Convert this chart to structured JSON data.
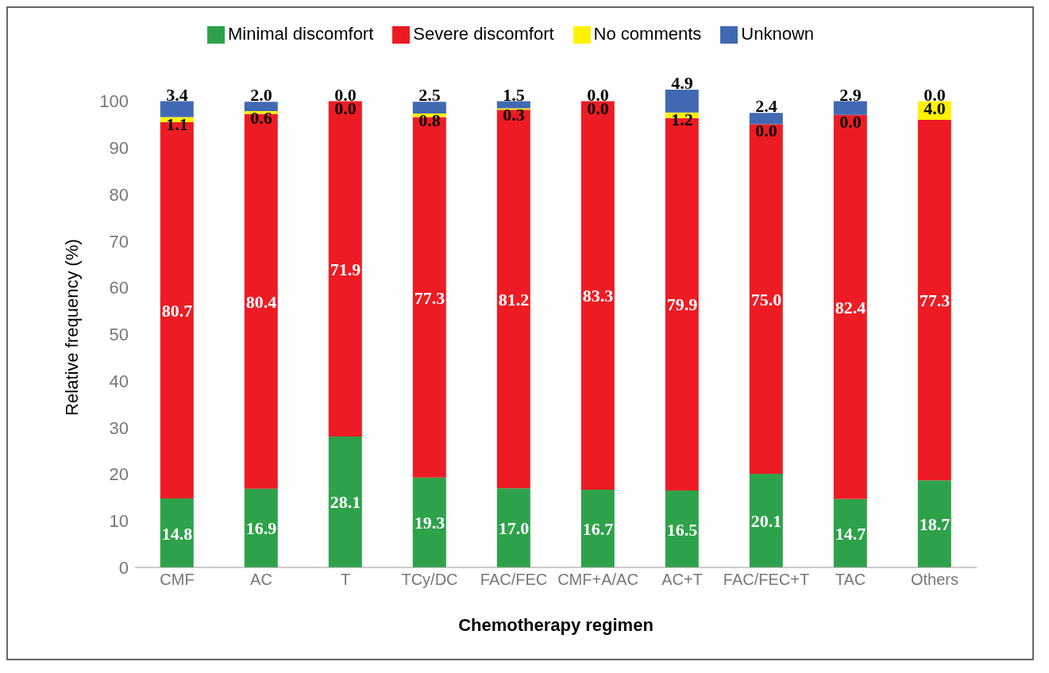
{
  "chart_data": {
    "type": "bar",
    "stacked": true,
    "xlabel": "Chemotherapy regimen",
    "ylabel": "Relative frequency (%)",
    "categories": [
      "CMF",
      "AC",
      "T",
      "TCy/DC",
      "FAC/FEC",
      "CMF+A/AC",
      "AC+T",
      "FAC/FEC+T",
      "TAC",
      "Others"
    ],
    "ylim": [
      0,
      103
    ],
    "yticks": [
      0,
      10,
      20,
      30,
      40,
      50,
      60,
      70,
      80,
      90,
      100
    ],
    "grid": false,
    "legend": "top",
    "series": [
      {
        "name": "Minimal discomfort",
        "color": "#2ea24a",
        "values": [
          14.8,
          16.9,
          28.1,
          19.3,
          17.0,
          16.7,
          16.5,
          20.1,
          14.7,
          18.7
        ],
        "value_labels": [
          "14.8",
          "16.9",
          "28.1",
          "19.3",
          "17.0",
          "16.7",
          "16.5",
          "20.1",
          "14.7",
          "18.7"
        ]
      },
      {
        "name": "Severe discomfort",
        "color": "#ed1c24",
        "values": [
          80.7,
          80.4,
          71.9,
          77.3,
          81.2,
          83.3,
          79.9,
          75.0,
          82.4,
          77.3
        ],
        "value_labels": [
          "80.7",
          "80.4",
          "71.9",
          "77.3",
          "81.2",
          "83.3",
          "79.9",
          "75.0",
          "82.4",
          "77.3"
        ]
      },
      {
        "name": "No comments",
        "color": "#fff200",
        "values": [
          1.1,
          0.6,
          0.0,
          0.8,
          0.3,
          0.0,
          1.2,
          0.0,
          0.0,
          4.0
        ],
        "value_labels": [
          "1.1",
          "0.6",
          "0.0",
          "0.8",
          "0.3",
          "0.0",
          "1.2",
          "0.0",
          "0.0",
          "4.0"
        ]
      },
      {
        "name": "Unknown",
        "color": "#4169b3",
        "values": [
          3.4,
          2.0,
          0.0,
          2.5,
          1.5,
          0.0,
          4.9,
          2.4,
          2.9,
          0.0
        ],
        "value_labels": [
          "3.4",
          "2.0",
          "0.0",
          "2.5",
          "1.5",
          "0.0",
          "4.9",
          "2.4",
          "2.9",
          "0.0"
        ]
      }
    ]
  }
}
